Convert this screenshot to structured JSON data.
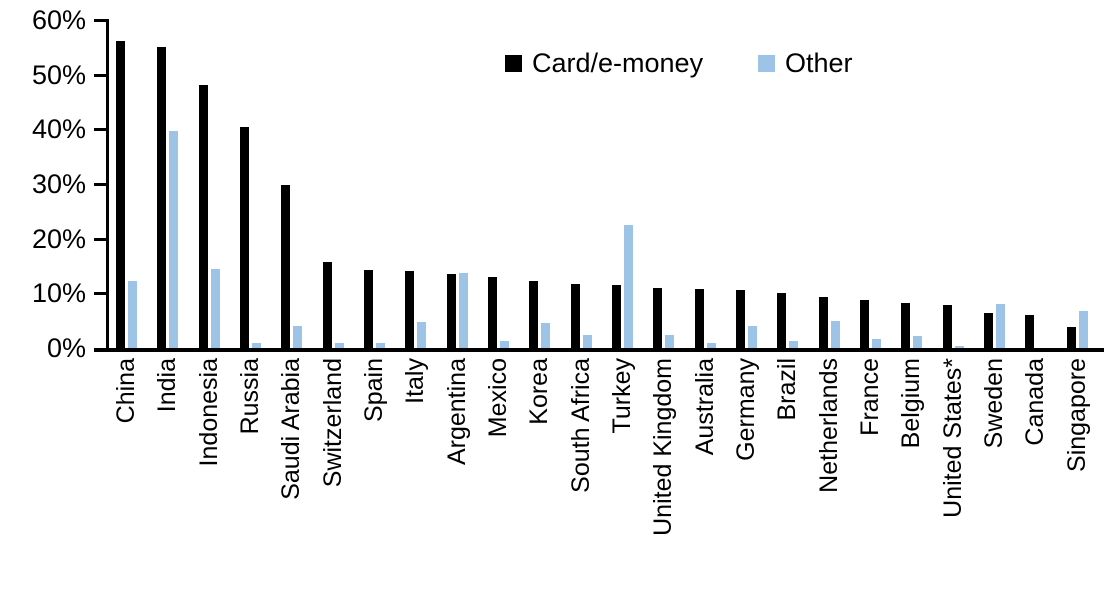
{
  "chart_data": {
    "type": "bar",
    "categories": [
      "China",
      "India",
      "Indonesia",
      "Russia",
      "Saudi Arabia",
      "Switzerland",
      "Spain",
      "Italy",
      "Argentina",
      "Mexico",
      "Korea",
      "South Africa",
      "Turkey",
      "United Kingdom",
      "Australia",
      "Germany",
      "Brazil",
      "Netherlands",
      "France",
      "Belgium",
      "United States*",
      "Sweden",
      "Canada",
      "Singapore"
    ],
    "series": [
      {
        "name": "Card/e-money",
        "color": "#000000",
        "values": [
          56.2,
          55.0,
          48.2,
          40.5,
          29.8,
          15.7,
          14.2,
          14.1,
          13.5,
          12.9,
          12.2,
          11.7,
          11.6,
          11.0,
          10.8,
          10.7,
          10.1,
          9.3,
          8.8,
          8.2,
          7.9,
          6.4,
          6.0,
          3.9
        ]
      },
      {
        "name": "Other",
        "color": "#9DC3E6",
        "values": [
          12.2,
          39.7,
          14.5,
          1.0,
          4.0,
          0.9,
          1.0,
          4.7,
          13.8,
          1.3,
          4.6,
          2.4,
          22.5,
          2.3,
          1.0,
          4.0,
          1.3,
          5.0,
          1.7,
          2.2,
          0.3,
          8.0,
          0.0,
          6.7
        ]
      }
    ],
    "title": "",
    "xlabel": "",
    "ylabel": "",
    "ylim": [
      0,
      60
    ],
    "yticks": [
      0,
      10,
      20,
      30,
      40,
      50,
      60
    ],
    "ytick_labels": [
      "0%",
      "10%",
      "20%",
      "30%",
      "40%",
      "50%",
      "60%"
    ],
    "grid": false,
    "legend_position": "top-center"
  }
}
